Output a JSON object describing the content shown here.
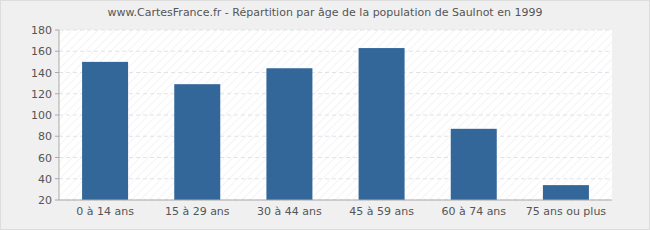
{
  "chart_data": {
    "type": "bar",
    "title": "www.CartesFrance.fr - Répartition par âge de la population de Saulnot en 1999",
    "categories": [
      "0 à 14 ans",
      "15 à 29 ans",
      "30 à 44 ans",
      "45 à 59 ans",
      "60 à 74 ans",
      "75 ans ou plus"
    ],
    "values": [
      150,
      129,
      144,
      163,
      87,
      34
    ],
    "color": "#336699",
    "ylim": [
      20,
      180
    ],
    "yticks": [
      20,
      40,
      60,
      80,
      100,
      120,
      140,
      160,
      180
    ],
    "grid": true
  }
}
